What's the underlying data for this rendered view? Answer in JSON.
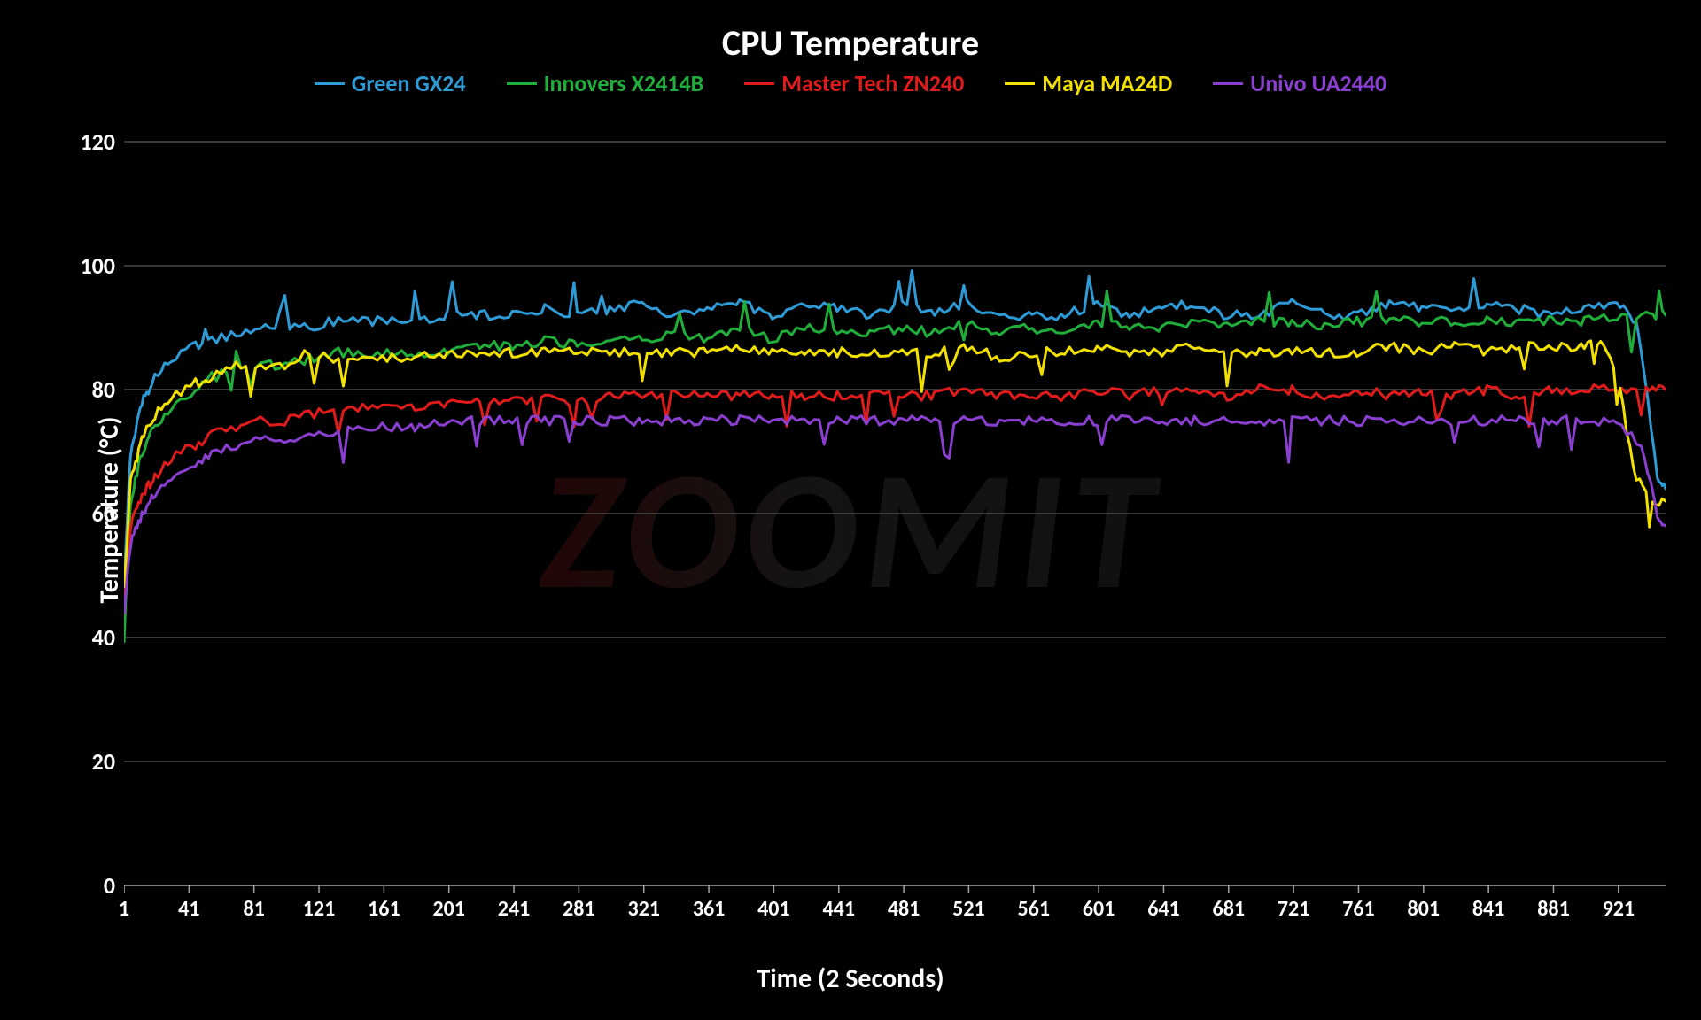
{
  "chart": {
    "type": "line",
    "title": "CPU Temperature",
    "title_fontsize": 40,
    "xlabel": "Time (2 Seconds)",
    "ylabel": "Temperature (°C)",
    "label_fontsize": 30,
    "tick_fontsize": 26,
    "background_color": "#000000",
    "grid_color": "#595959",
    "axis_color": "#a6a6a6",
    "ylim": [
      0,
      120
    ],
    "ytick_step": 20,
    "yticks": [
      0,
      20,
      40,
      60,
      80,
      100,
      120
    ],
    "xlim": [
      1,
      950
    ],
    "xtick_step": 40,
    "xticks": [
      1,
      41,
      81,
      121,
      161,
      201,
      241,
      281,
      321,
      361,
      401,
      441,
      481,
      521,
      561,
      601,
      641,
      681,
      721,
      761,
      801,
      841,
      881,
      921
    ],
    "line_width": 3,
    "watermark": "ZOOMIT",
    "series": [
      {
        "name": "Green GX24",
        "color": "#2e9bd6",
        "x": [
          1,
          5,
          12,
          20,
          30,
          45,
          55,
          70,
          85,
          100,
          115,
          130,
          145,
          160,
          180,
          200,
          220,
          240,
          260,
          280,
          300,
          320,
          340,
          360,
          380,
          400,
          420,
          440,
          460,
          480,
          500,
          520,
          540,
          560,
          580,
          600,
          620,
          640,
          660,
          680,
          700,
          720,
          740,
          760,
          780,
          800,
          820,
          840,
          860,
          880,
          900,
          920,
          933,
          945,
          950
        ],
        "y": [
          48,
          70,
          78,
          82,
          85,
          87,
          88,
          89,
          90,
          90,
          90,
          91,
          91,
          91,
          91,
          92,
          92,
          92,
          93,
          92,
          93,
          94,
          92,
          93,
          94,
          92,
          94,
          93,
          92,
          94,
          92,
          94,
          92,
          92,
          92,
          94,
          92,
          93,
          94,
          92,
          92,
          94,
          92,
          92,
          94,
          93,
          93,
          94,
          93,
          92,
          93,
          94,
          90,
          66,
          64
        ]
      },
      {
        "name": "Innovers X2414B",
        "color": "#1fae3a",
        "x": [
          1,
          5,
          12,
          20,
          30,
          45,
          55,
          70,
          85,
          100,
          115,
          130,
          145,
          160,
          180,
          200,
          220,
          240,
          260,
          280,
          300,
          320,
          340,
          360,
          380,
          400,
          420,
          440,
          460,
          480,
          500,
          520,
          540,
          560,
          580,
          600,
          620,
          640,
          660,
          680,
          700,
          720,
          740,
          760,
          780,
          800,
          820,
          840,
          860,
          880,
          900,
          920,
          940,
          950
        ],
        "y": [
          40,
          62,
          70,
          74,
          77,
          80,
          82,
          83,
          84,
          84,
          85,
          86,
          86,
          86,
          86,
          86,
          87,
          87,
          88,
          87,
          88,
          88,
          89,
          88,
          90,
          88,
          90,
          89,
          89,
          90,
          89,
          91,
          89,
          90,
          89,
          91,
          90,
          90,
          91,
          90,
          91,
          91,
          90,
          91,
          91,
          91,
          91,
          91,
          91,
          91,
          91,
          92,
          92,
          92
        ]
      },
      {
        "name": "Master Tech ZN240",
        "color": "#e11b1b",
        "x": [
          1,
          5,
          12,
          20,
          30,
          45,
          55,
          70,
          85,
          100,
          115,
          130,
          145,
          160,
          180,
          200,
          220,
          240,
          260,
          280,
          300,
          320,
          340,
          360,
          380,
          400,
          420,
          440,
          460,
          480,
          500,
          520,
          540,
          560,
          580,
          600,
          620,
          640,
          660,
          680,
          700,
          720,
          740,
          760,
          780,
          800,
          820,
          840,
          860,
          880,
          900,
          920,
          940,
          950
        ],
        "y": [
          46,
          58,
          63,
          66,
          69,
          71,
          73,
          74,
          75,
          75,
          76,
          77,
          77,
          77,
          77,
          78,
          78,
          78,
          79,
          78,
          79,
          79,
          79,
          79,
          79,
          79,
          79,
          79,
          79,
          79,
          79,
          80,
          79,
          79,
          79,
          80,
          79,
          80,
          80,
          79,
          80,
          80,
          79,
          80,
          79,
          80,
          79,
          80,
          79,
          80,
          80,
          80,
          80,
          80
        ]
      },
      {
        "name": "Maya MA24D",
        "color": "#f2e000",
        "x": [
          1,
          5,
          12,
          20,
          30,
          45,
          55,
          70,
          85,
          100,
          115,
          130,
          145,
          160,
          180,
          200,
          220,
          240,
          260,
          280,
          300,
          320,
          340,
          360,
          380,
          400,
          420,
          440,
          460,
          480,
          500,
          520,
          540,
          560,
          580,
          600,
          620,
          640,
          660,
          680,
          700,
          720,
          740,
          760,
          780,
          800,
          820,
          840,
          860,
          880,
          900,
          910,
          920,
          930,
          940,
          950
        ],
        "y": [
          48,
          65,
          72,
          76,
          79,
          81,
          82,
          84,
          84,
          84,
          86,
          85,
          85,
          85,
          85,
          86,
          86,
          86,
          86,
          86,
          86,
          86,
          86,
          86,
          87,
          86,
          86,
          86,
          86,
          86,
          86,
          87,
          85,
          86,
          86,
          87,
          86,
          86,
          87,
          86,
          86,
          86,
          86,
          86,
          87,
          86,
          87,
          86,
          87,
          87,
          87,
          88,
          83,
          67,
          62,
          62
        ]
      },
      {
        "name": "Univo UA2440",
        "color": "#8a3fd1",
        "x": [
          1,
          5,
          12,
          20,
          30,
          45,
          55,
          70,
          85,
          100,
          115,
          130,
          145,
          160,
          180,
          200,
          220,
          240,
          260,
          280,
          300,
          320,
          340,
          360,
          380,
          400,
          420,
          440,
          460,
          480,
          500,
          520,
          540,
          560,
          580,
          600,
          620,
          640,
          660,
          680,
          700,
          720,
          740,
          760,
          780,
          800,
          820,
          840,
          860,
          880,
          900,
          920,
          935,
          945,
          950
        ],
        "y": [
          44,
          55,
          60,
          63,
          66,
          68,
          70,
          71,
          72,
          72,
          73,
          73,
          74,
          74,
          74,
          75,
          75,
          75,
          75,
          75,
          75,
          75,
          75,
          75,
          75,
          75,
          75,
          75,
          75,
          75,
          75,
          75,
          75,
          75,
          75,
          75,
          75,
          75,
          75,
          75,
          75,
          75,
          75,
          75,
          75,
          75,
          75,
          75,
          75,
          75,
          75,
          75,
          71,
          60,
          58
        ]
      }
    ]
  }
}
